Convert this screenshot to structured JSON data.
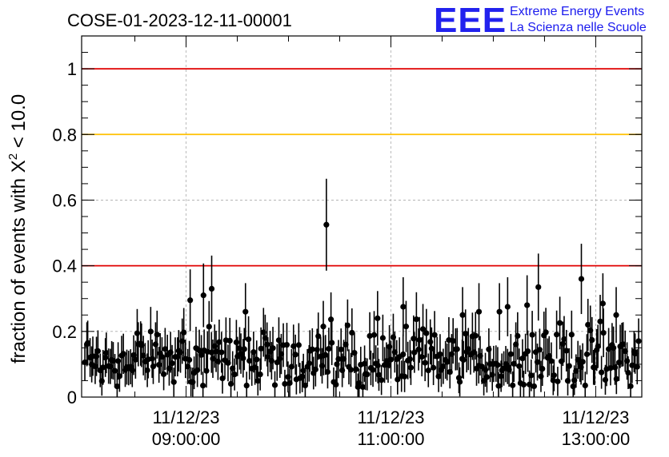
{
  "header": {
    "title": "COSE-01-2023-12-11-00001",
    "logo_text": "EEE",
    "logo_line1": "Extreme Energy Events",
    "logo_line2": "La Scienza nelle Scuole",
    "logo_color": "#2222ee"
  },
  "chart_data": {
    "type": "scatter",
    "title": "COSE-01-2023-12-11-00001",
    "ylabel_main": "fraction of events with X",
    "ylabel_sup": "2",
    "ylabel_tail": " < 10.0",
    "xlabel": "",
    "x_unit": "hours (time of day)",
    "xlim": [
      7.98,
      13.45
    ],
    "ylim": [
      0,
      1.1
    ],
    "x_ticks": [
      {
        "value": 9.0,
        "label_date": "11/12/23",
        "label_time": "09:00:00"
      },
      {
        "value": 11.0,
        "label_date": "11/12/23",
        "label_time": "11:00:00"
      },
      {
        "value": 13.0,
        "label_date": "11/12/23",
        "label_time": "13:00:00"
      }
    ],
    "y_ticks": [
      {
        "value": 0,
        "label": "0"
      },
      {
        "value": 0.2,
        "label": "0.2"
      },
      {
        "value": 0.4,
        "label": "0.4"
      },
      {
        "value": 0.6,
        "label": "0.6"
      },
      {
        "value": 0.8,
        "label": "0.8"
      },
      {
        "value": 1.0,
        "label": "1"
      }
    ],
    "grid": true,
    "reference_lines": [
      {
        "y": 1.0,
        "color": "#e00000"
      },
      {
        "y": 0.8,
        "color": "#ffc000"
      },
      {
        "y": 0.4,
        "color": "#e00000"
      }
    ],
    "point_color": "#000000",
    "series": [
      {
        "notable_points": [
          {
            "x": 9.04,
            "y": 0.295
          },
          {
            "x": 9.17,
            "y": 0.31
          },
          {
            "x": 9.25,
            "y": 0.33
          },
          {
            "x": 9.58,
            "y": 0.26
          },
          {
            "x": 10.37,
            "y": 0.525
          },
          {
            "x": 10.34,
            "y": 0.215
          },
          {
            "x": 10.87,
            "y": 0.24
          },
          {
            "x": 11.12,
            "y": 0.275
          },
          {
            "x": 11.7,
            "y": 0.25
          },
          {
            "x": 12.33,
            "y": 0.28
          },
          {
            "x": 12.44,
            "y": 0.335
          },
          {
            "x": 12.86,
            "y": 0.36
          },
          {
            "x": 13.07,
            "y": 0.285
          },
          {
            "x": 13.2,
            "y": 0.25
          },
          {
            "x": 12.14,
            "y": 0.275
          },
          {
            "x": 11.86,
            "y": 0.26
          },
          {
            "x": 12.06,
            "y": 0.26
          }
        ]
      }
    ]
  }
}
